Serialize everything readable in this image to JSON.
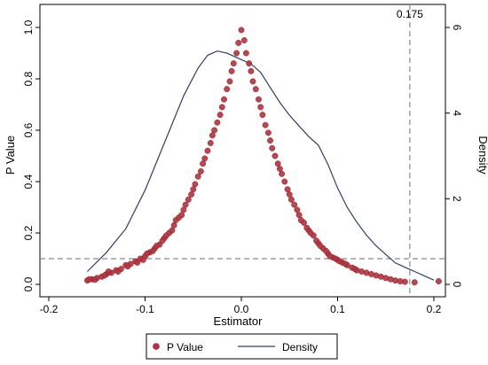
{
  "chart_data": {
    "type": "scatter",
    "title": "",
    "xlabel": "Estimator",
    "ylabel": "P Value",
    "y2label": "Density",
    "xlim": [
      -0.2,
      0.2
    ],
    "ylim": [
      0,
      1
    ],
    "y2lim": [
      0,
      6
    ],
    "x_ticks": [
      "-0.2",
      "-0.1",
      "0.0",
      "0.1",
      "0.2"
    ],
    "y_ticks": [
      "0.0",
      "0.2",
      "0.4",
      "0.6",
      "0.8",
      "1.0"
    ],
    "y2_ticks": [
      "0",
      "2",
      "4",
      "6"
    ],
    "colors": {
      "points": "#b2333d",
      "points_edge": "#8c1c27",
      "density": "#2d3f66",
      "reference": "#8a8a8a"
    },
    "reference_lines": {
      "vertical": {
        "x": 0.175,
        "label": "0.175"
      },
      "horizontal": {
        "y": 0.1
      }
    },
    "legend": {
      "position": "bottom",
      "entries": [
        "P Value",
        "Density"
      ]
    },
    "series": [
      {
        "name": "P Value",
        "marker": "circle",
        "points": [
          [
            -0.16,
            0.015
          ],
          [
            -0.155,
            0.02
          ],
          [
            -0.15,
            0.025
          ],
          [
            -0.145,
            0.03
          ],
          [
            -0.14,
            0.04
          ],
          [
            -0.135,
            0.045
          ],
          [
            -0.13,
            0.055
          ],
          [
            -0.125,
            0.06
          ],
          [
            -0.12,
            0.075
          ],
          [
            -0.115,
            0.08
          ],
          [
            -0.11,
            0.09
          ],
          [
            -0.105,
            0.1
          ],
          [
            -0.1,
            0.11
          ],
          [
            -0.095,
            0.125
          ],
          [
            -0.09,
            0.14
          ],
          [
            -0.085,
            0.155
          ],
          [
            -0.08,
            0.18
          ],
          [
            -0.075,
            0.2
          ],
          [
            -0.07,
            0.23
          ],
          [
            -0.065,
            0.26
          ],
          [
            -0.06,
            0.29
          ],
          [
            -0.055,
            0.33
          ],
          [
            -0.05,
            0.37
          ],
          [
            -0.045,
            0.42
          ],
          [
            -0.04,
            0.47
          ],
          [
            -0.035,
            0.52
          ],
          [
            -0.03,
            0.58
          ],
          [
            -0.025,
            0.63
          ],
          [
            -0.02,
            0.69
          ],
          [
            -0.015,
            0.76
          ],
          [
            -0.01,
            0.83
          ],
          [
            -0.005,
            0.9
          ],
          [
            0.0,
            0.99
          ],
          [
            0.005,
            0.9
          ],
          [
            0.01,
            0.83
          ],
          [
            0.015,
            0.76
          ],
          [
            0.02,
            0.69
          ],
          [
            0.025,
            0.62
          ],
          [
            0.03,
            0.56
          ],
          [
            0.035,
            0.5
          ],
          [
            0.04,
            0.45
          ],
          [
            0.045,
            0.4
          ],
          [
            0.05,
            0.35
          ],
          [
            0.055,
            0.31
          ],
          [
            0.06,
            0.27
          ],
          [
            0.065,
            0.24
          ],
          [
            0.07,
            0.21
          ],
          [
            0.075,
            0.19
          ],
          [
            0.08,
            0.16
          ],
          [
            0.085,
            0.14
          ],
          [
            0.09,
            0.12
          ],
          [
            0.095,
            0.105
          ],
          [
            0.1,
            0.095
          ],
          [
            0.105,
            0.085
          ],
          [
            0.11,
            0.075
          ],
          [
            0.115,
            0.065
          ],
          [
            0.12,
            0.055
          ],
          [
            0.13,
            0.045
          ],
          [
            0.14,
            0.035
          ],
          [
            0.15,
            0.025
          ],
          [
            0.16,
            0.015
          ],
          [
            0.17,
            0.01
          ],
          [
            0.18,
            0.008
          ],
          [
            0.205,
            0.012
          ],
          [
            -0.158,
            0.02
          ],
          [
            -0.152,
            0.018
          ],
          [
            -0.142,
            0.035
          ],
          [
            -0.138,
            0.05
          ],
          [
            -0.128,
            0.05
          ],
          [
            -0.118,
            0.07
          ],
          [
            -0.108,
            0.085
          ],
          [
            -0.102,
            0.095
          ],
          [
            -0.098,
            0.12
          ],
          [
            -0.092,
            0.13
          ],
          [
            -0.088,
            0.15
          ],
          [
            -0.082,
            0.17
          ],
          [
            -0.078,
            0.19
          ],
          [
            -0.072,
            0.21
          ],
          [
            -0.068,
            0.25
          ],
          [
            -0.062,
            0.27
          ],
          [
            -0.058,
            0.31
          ],
          [
            -0.052,
            0.35
          ],
          [
            -0.048,
            0.39
          ],
          [
            -0.042,
            0.44
          ],
          [
            -0.038,
            0.49
          ],
          [
            -0.032,
            0.55
          ],
          [
            -0.028,
            0.6
          ],
          [
            -0.022,
            0.66
          ],
          [
            -0.018,
            0.72
          ],
          [
            -0.012,
            0.79
          ],
          [
            -0.008,
            0.86
          ],
          [
            -0.003,
            0.94
          ],
          [
            0.003,
            0.95
          ],
          [
            0.008,
            0.86
          ],
          [
            0.012,
            0.79
          ],
          [
            0.018,
            0.72
          ],
          [
            0.022,
            0.66
          ],
          [
            0.028,
            0.59
          ],
          [
            0.032,
            0.53
          ],
          [
            0.038,
            0.47
          ],
          [
            0.042,
            0.43
          ],
          [
            0.048,
            0.37
          ],
          [
            0.052,
            0.33
          ],
          [
            0.058,
            0.29
          ],
          [
            0.062,
            0.25
          ],
          [
            0.068,
            0.22
          ],
          [
            0.072,
            0.2
          ],
          [
            0.078,
            0.17
          ],
          [
            0.082,
            0.15
          ],
          [
            0.088,
            0.13
          ],
          [
            0.092,
            0.11
          ],
          [
            0.098,
            0.1
          ],
          [
            0.102,
            0.09
          ],
          [
            0.108,
            0.08
          ],
          [
            0.118,
            0.06
          ],
          [
            0.125,
            0.05
          ],
          [
            0.135,
            0.04
          ],
          [
            0.145,
            0.03
          ],
          [
            0.155,
            0.02
          ],
          [
            0.165,
            0.012
          ]
        ]
      },
      {
        "name": "Density",
        "axis": "right",
        "type": "line",
        "points": [
          [
            -0.16,
            0.3
          ],
          [
            -0.14,
            0.75
          ],
          [
            -0.12,
            1.3
          ],
          [
            -0.1,
            2.2
          ],
          [
            -0.08,
            3.3
          ],
          [
            -0.06,
            4.4
          ],
          [
            -0.045,
            5.05
          ],
          [
            -0.035,
            5.35
          ],
          [
            -0.025,
            5.45
          ],
          [
            -0.015,
            5.4
          ],
          [
            0.0,
            5.25
          ],
          [
            0.01,
            5.15
          ],
          [
            0.02,
            4.95
          ],
          [
            0.03,
            4.6
          ],
          [
            0.04,
            4.25
          ],
          [
            0.05,
            3.95
          ],
          [
            0.06,
            3.7
          ],
          [
            0.07,
            3.45
          ],
          [
            0.08,
            3.25
          ],
          [
            0.09,
            2.8
          ],
          [
            0.1,
            2.25
          ],
          [
            0.11,
            1.8
          ],
          [
            0.12,
            1.45
          ],
          [
            0.13,
            1.15
          ],
          [
            0.14,
            0.9
          ],
          [
            0.15,
            0.7
          ],
          [
            0.16,
            0.5
          ],
          [
            0.17,
            0.4
          ],
          [
            0.18,
            0.3
          ],
          [
            0.19,
            0.2
          ],
          [
            0.2,
            0.1
          ]
        ]
      }
    ]
  }
}
